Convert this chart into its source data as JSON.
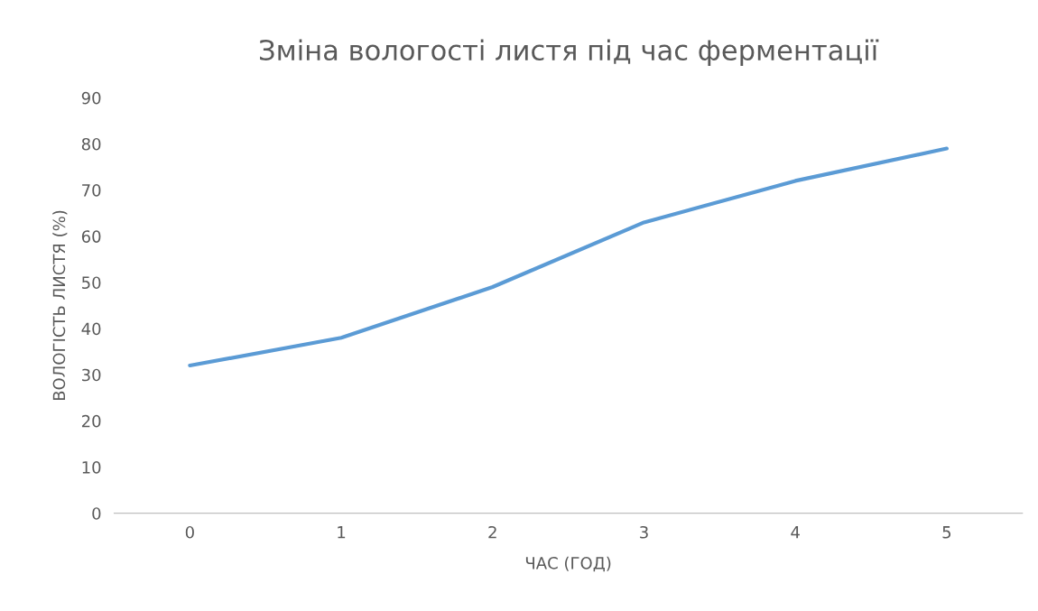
{
  "chart_data": {
    "type": "line",
    "title": "Зміна вологості листя під час ферментації",
    "xlabel": "ЧАС (ГОД)",
    "ylabel": "ВОЛОГІСТЬ ЛИСТЯ (%)",
    "categories": [
      "0",
      "1",
      "2",
      "3",
      "4",
      "5"
    ],
    "series": [
      {
        "color": "#5b9bd5",
        "values": [
          32,
          38,
          49,
          63,
          72,
          79
        ]
      }
    ],
    "ylim": [
      0,
      90
    ],
    "yticks": [
      0,
      10,
      20,
      30,
      40,
      50,
      60,
      70,
      80,
      90
    ],
    "grid": false,
    "legend": false,
    "marker": "none",
    "line_style": "solid"
  }
}
